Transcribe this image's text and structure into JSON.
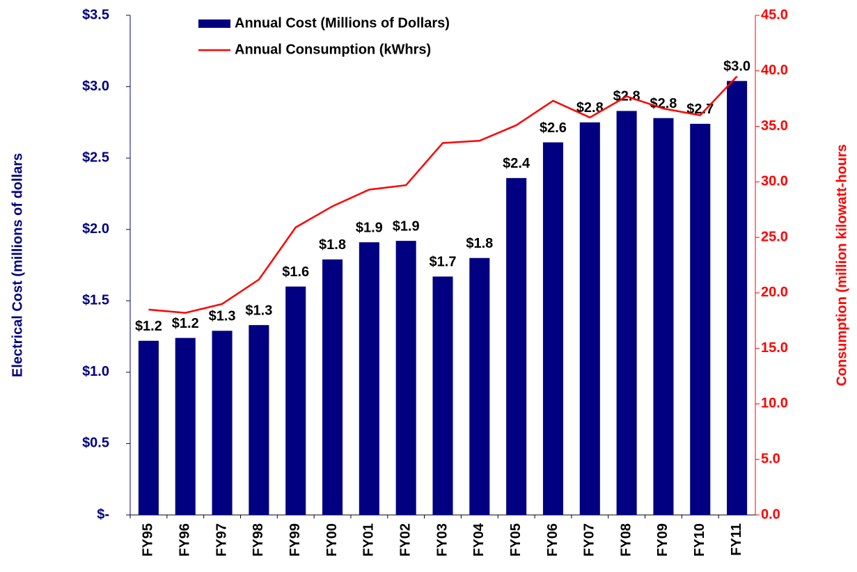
{
  "chart_data": {
    "type": "bar",
    "categories": [
      "FY95",
      "FY96",
      "FY97",
      "FY98",
      "FY99",
      "FY00",
      "FY01",
      "FY02",
      "FY03",
      "FY04",
      "FY05",
      "FY06",
      "FY07",
      "FY08",
      "FY09",
      "FY10",
      "FY11"
    ],
    "series": [
      {
        "name": "Annual Cost (Millions of Dollars)",
        "type": "bar",
        "color": "#000080",
        "values": [
          1.22,
          1.24,
          1.29,
          1.33,
          1.6,
          1.79,
          1.91,
          1.92,
          1.67,
          1.8,
          2.36,
          2.61,
          2.75,
          2.83,
          2.78,
          2.74,
          3.04
        ],
        "value_labels": [
          "$1.2",
          "$1.2",
          "$1.3",
          "$1.3",
          "$1.6",
          "$1.8",
          "$1.9",
          "$1.9",
          "$1.7",
          "$1.8",
          "$2.4",
          "$2.6",
          "$2.8",
          "$2.8",
          "$2.8",
          "$2.7",
          "$3.0"
        ]
      },
      {
        "name": "Annual Consumption (kWhrs)",
        "type": "line",
        "color": "#ff0000",
        "axis": "y2",
        "values": [
          18.5,
          18.2,
          19.0,
          21.2,
          25.9,
          27.8,
          29.3,
          29.7,
          33.5,
          33.7,
          35.1,
          37.3,
          35.8,
          37.7,
          36.6,
          36.0,
          39.5
        ]
      }
    ],
    "ylabel": "Electrical Cost (millions of dollars",
    "y2label": "Consumption (million kilowatt-hours",
    "ylim": [
      0,
      3.5
    ],
    "yticks": [
      {
        "value": 0,
        "label": "$-"
      },
      {
        "value": 0.5,
        "label": "$0.5"
      },
      {
        "value": 1,
        "label": "$1.0"
      },
      {
        "value": 1.5,
        "label": "$1.5"
      },
      {
        "value": 2,
        "label": "$2.0"
      },
      {
        "value": 2.5,
        "label": "$2.5"
      },
      {
        "value": 3,
        "label": "$3.0"
      },
      {
        "value": 3.5,
        "label": "$3.5"
      }
    ],
    "y2lim": [
      0,
      45
    ],
    "y2ticks": [
      {
        "value": 0,
        "label": "0.0"
      },
      {
        "value": 5,
        "label": "5.0"
      },
      {
        "value": 10,
        "label": "10.0"
      },
      {
        "value": 15,
        "label": "15.0"
      },
      {
        "value": 20,
        "label": "20.0"
      },
      {
        "value": 25,
        "label": "25.0"
      },
      {
        "value": 30,
        "label": "30.0"
      },
      {
        "value": 35,
        "label": "35.0"
      },
      {
        "value": 40,
        "label": "40.0"
      },
      {
        "value": 45,
        "label": "45.0"
      }
    ],
    "legend": "upper left",
    "grid": false
  }
}
